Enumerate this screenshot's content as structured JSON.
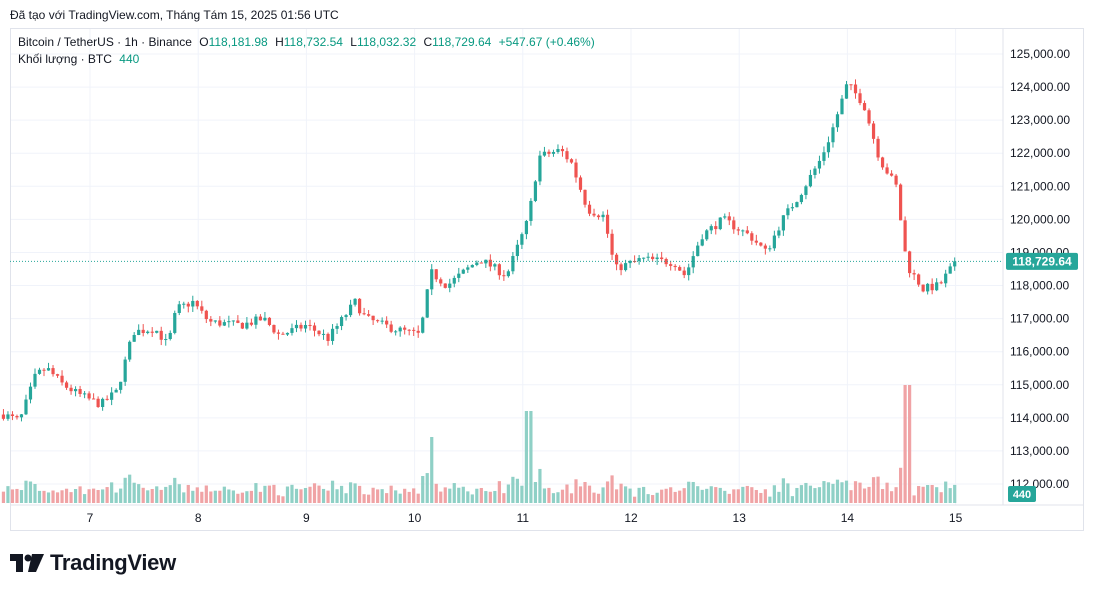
{
  "header": {
    "created_with": "Đã tạo với TradingView.com, Tháng Tám 15, 2025 01:56 UTC"
  },
  "legend": {
    "symbol": "Bitcoin / TetherUS · 1h · Binance",
    "open_label": "O",
    "open": "118,181.98",
    "high_label": "H",
    "high": "118,732.54",
    "low_label": "L",
    "low": "118,032.32",
    "close_label": "C",
    "close": "118,729.64",
    "change": "+547.67 (+0.46%)",
    "volume_label": "Khối lượng · BTC",
    "volume": "440"
  },
  "price_axis": {
    "ticks": [
      "125,000.00",
      "124,000.00",
      "123,000.00",
      "122,000.00",
      "121,000.00",
      "120,000.00",
      "119,000.00",
      "118,000.00",
      "117,000.00",
      "116,000.00",
      "115,000.00",
      "114,000.00",
      "113,000.00",
      "112,000.00"
    ],
    "last_price_label": "118,729.64",
    "volume_badge": "440"
  },
  "time_axis": {
    "ticks": [
      "7",
      "8",
      "9",
      "10",
      "11",
      "12",
      "13",
      "14",
      "15"
    ]
  },
  "brand": {
    "logo_text": "TradingView"
  },
  "colors": {
    "up": "#26a69a",
    "down": "#ef5350",
    "up_volume": "#8fd0c6",
    "down_volume": "#f0a3a5",
    "grid": "#f0f3fa",
    "text": "#131722"
  },
  "chart_data": {
    "type": "candlestick",
    "symbol": "Bitcoin / TetherUS",
    "interval": "1h",
    "ylim": [
      111600,
      125400
    ],
    "grid": true,
    "anchors": [
      {
        "day": 6.2,
        "price": 114100
      },
      {
        "day": 6.35,
        "price": 113900
      },
      {
        "day": 6.5,
        "price": 115300
      },
      {
        "day": 6.6,
        "price": 115500
      },
      {
        "day": 6.75,
        "price": 115000
      },
      {
        "day": 6.9,
        "price": 114700
      },
      {
        "day": 7.1,
        "price": 114400
      },
      {
        "day": 7.25,
        "price": 114800
      },
      {
        "day": 7.4,
        "price": 116600
      },
      {
        "day": 7.6,
        "price": 116700
      },
      {
        "day": 7.72,
        "price": 116200
      },
      {
        "day": 7.8,
        "price": 117300
      },
      {
        "day": 7.95,
        "price": 117500
      },
      {
        "day": 8.1,
        "price": 116900
      },
      {
        "day": 8.4,
        "price": 116800
      },
      {
        "day": 8.6,
        "price": 117000
      },
      {
        "day": 8.75,
        "price": 116500
      },
      {
        "day": 9.0,
        "price": 116800
      },
      {
        "day": 9.2,
        "price": 116400
      },
      {
        "day": 9.45,
        "price": 117500
      },
      {
        "day": 9.55,
        "price": 117000
      },
      {
        "day": 9.8,
        "price": 116700
      },
      {
        "day": 10.05,
        "price": 116500
      },
      {
        "day": 10.15,
        "price": 118400
      },
      {
        "day": 10.3,
        "price": 118000
      },
      {
        "day": 10.6,
        "price": 118800
      },
      {
        "day": 10.85,
        "price": 118300
      },
      {
        "day": 11.05,
        "price": 120000
      },
      {
        "day": 11.15,
        "price": 121900
      },
      {
        "day": 11.35,
        "price": 122100
      },
      {
        "day": 11.45,
        "price": 121700
      },
      {
        "day": 11.6,
        "price": 120300
      },
      {
        "day": 11.75,
        "price": 120100
      },
      {
        "day": 11.85,
        "price": 118500
      },
      {
        "day": 12.1,
        "price": 118800
      },
      {
        "day": 12.4,
        "price": 118700
      },
      {
        "day": 12.5,
        "price": 118300
      },
      {
        "day": 12.65,
        "price": 119500
      },
      {
        "day": 12.85,
        "price": 120000
      },
      {
        "day": 13.1,
        "price": 119500
      },
      {
        "day": 13.25,
        "price": 119000
      },
      {
        "day": 13.4,
        "price": 120000
      },
      {
        "day": 13.55,
        "price": 120700
      },
      {
        "day": 13.75,
        "price": 121800
      },
      {
        "day": 13.85,
        "price": 122600
      },
      {
        "day": 14.0,
        "price": 124100
      },
      {
        "day": 14.15,
        "price": 123500
      },
      {
        "day": 14.3,
        "price": 121800
      },
      {
        "day": 14.45,
        "price": 121000
      },
      {
        "day": 14.55,
        "price": 118600
      },
      {
        "day": 14.7,
        "price": 117900
      },
      {
        "day": 14.85,
        "price": 118000
      },
      {
        "day": 15.0,
        "price": 118730
      }
    ],
    "last_close": 118729.64,
    "current_volume": 440
  }
}
